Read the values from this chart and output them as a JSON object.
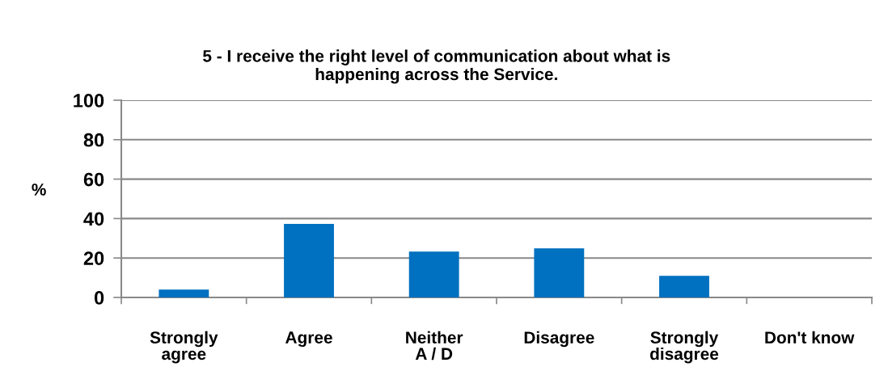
{
  "chart_data": {
    "type": "bar",
    "title": "5 - I receive the right level of communication about what is\nhappening across the Service.",
    "ylabel": "%",
    "categories": [
      "Strongly\nagree",
      "Agree",
      "Neither\nA / D",
      "Disagree",
      "Strongly\ndisagree",
      "Don't know"
    ],
    "values": [
      4,
      37.3,
      23.3,
      24.9,
      11,
      0
    ],
    "color": "#0070c0",
    "ylim": [
      0,
      100
    ],
    "yticks": [
      0,
      20,
      40,
      60,
      80,
      100
    ],
    "grid": "y",
    "legend": false
  }
}
